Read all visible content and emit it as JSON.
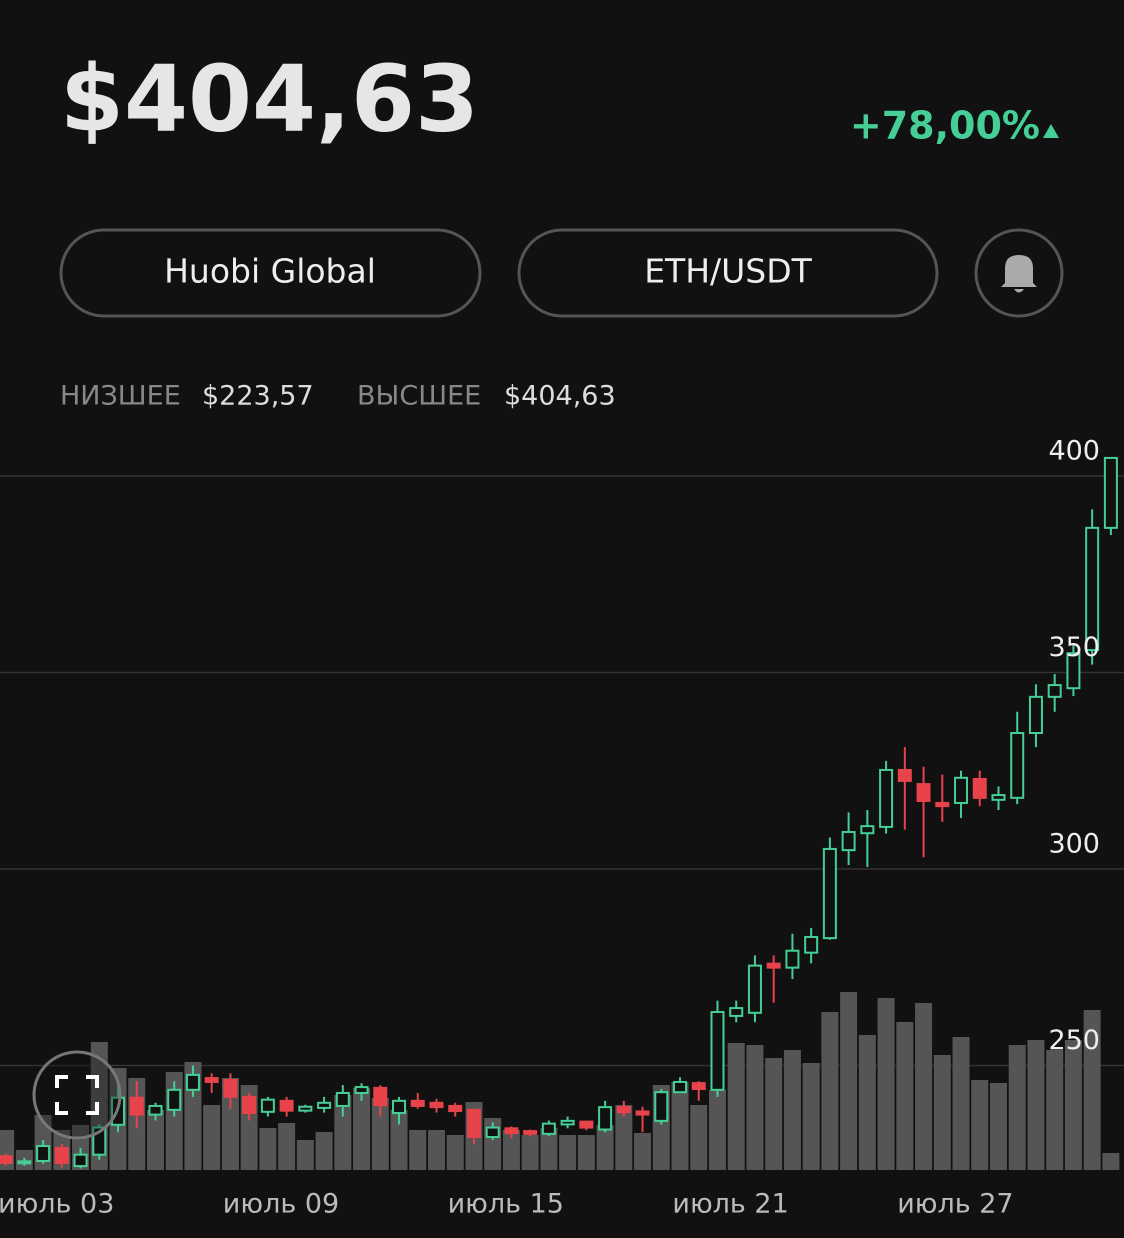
{
  "header": {
    "price": "$404,63",
    "change": "+78,00%"
  },
  "buttons": {
    "exchange": "Huobi Global",
    "pair": "ETH/USDT"
  },
  "range": {
    "low_label": "НИЗШЕЕ",
    "low": "$223,57",
    "high_label": "ВЫСШЕЕ",
    "high": "$404,63"
  },
  "chart_data": {
    "type": "candlestick",
    "x": [
      1.65,
      2.15,
      2.65,
      3.15,
      3.65,
      4.15,
      4.65,
      5.15,
      5.65,
      6.15,
      6.65,
      7.15,
      7.65,
      8.15,
      8.65,
      9.15,
      9.65,
      10.15,
      10.65,
      11.15,
      11.65,
      12.15,
      12.65,
      13.15,
      13.65,
      14.15,
      14.65,
      15.15,
      15.65,
      16.15,
      16.65,
      17.15,
      17.65,
      18.15,
      18.65,
      19.15,
      19.65,
      20.15,
      20.65,
      21.15,
      21.65,
      22.15,
      22.65,
      23.15,
      23.65,
      24.15,
      24.65,
      25.15,
      25.65,
      26.15,
      26.65,
      27.15,
      27.65,
      28.15,
      28.65,
      29.15,
      29.65,
      30.15,
      30.65,
      31.15
    ],
    "open": [
      226.9,
      225.1,
      225.7,
      229,
      224.4,
      227.3,
      234.9,
      241.8,
      237.5,
      238.7,
      243.8,
      246.8,
      246.3,
      242,
      238.2,
      241,
      238.5,
      239.2,
      239.7,
      243,
      244.3,
      237.9,
      241,
      240.5,
      239.7,
      238.7,
      231.8,
      234,
      233.3,
      232.6,
      235,
      235.7,
      233.7,
      239.4,
      238.3,
      235.9,
      243.2,
      245.5,
      243.8,
      262.6,
      263.4,
      275.9,
      274.9,
      278.7,
      282.4,
      304.8,
      309.1,
      310.7,
      325.2,
      321.6,
      316.8,
      316.8,
      322.9,
      317.6,
      318.1,
      334.6,
      343.8,
      346,
      355.7,
      386.8
    ],
    "high": [
      227.5,
      226.5,
      231,
      230,
      229,
      235,
      245,
      246,
      240.5,
      246,
      250,
      248,
      248,
      243,
      242,
      242,
      240,
      242,
      245,
      245.5,
      245,
      242,
      243,
      241.5,
      240.5,
      239,
      235.5,
      234.5,
      233.7,
      236,
      237,
      236,
      241,
      241,
      239.5,
      244,
      247,
      246,
      266.5,
      266.5,
      278,
      278,
      283.5,
      285,
      308,
      314.4,
      315,
      327.5,
      331,
      326,
      324,
      325,
      325,
      321,
      340,
      347,
      349.6,
      357,
      391.5,
      404.6
    ],
    "low": [
      224.5,
      224.5,
      225,
      224,
      223.8,
      226,
      233,
      234,
      236,
      237,
      242,
      243,
      239,
      236,
      237,
      237,
      238,
      238,
      237,
      241,
      237,
      235,
      239,
      238,
      237,
      230,
      231,
      231.5,
      232,
      232,
      234,
      233.5,
      233,
      237,
      233,
      235,
      243,
      241,
      242,
      261,
      261,
      266,
      272,
      276,
      282,
      301,
      300.5,
      309,
      310,
      303,
      312,
      313,
      316,
      315,
      316.5,
      331,
      340,
      344,
      352,
      385
    ],
    "close": [
      225.2,
      225.6,
      229.5,
      225.2,
      227.3,
      234.2,
      241.8,
      237.5,
      239.7,
      243.8,
      247.6,
      245.8,
      242,
      237.9,
      241.3,
      238.5,
      239.5,
      240.5,
      243,
      244.5,
      239.9,
      241,
      239.7,
      239.4,
      238.4,
      231.8,
      234.2,
      232.8,
      232.6,
      235.2,
      235.9,
      234.2,
      239.4,
      238.1,
      237.5,
      243.2,
      245.8,
      244,
      263.6,
      264.6,
      275.4,
      274.9,
      279.2,
      282.7,
      305.1,
      309.4,
      310.9,
      325.2,
      322.4,
      317.3,
      316,
      323.2,
      318.1,
      318.8,
      334.6,
      343.8,
      346.8,
      354.9,
      386.8,
      404.6
    ],
    "volume": [
      40,
      20,
      55,
      40,
      45,
      128,
      102,
      92,
      60,
      98,
      108,
      65,
      92,
      85,
      42,
      47,
      30,
      38,
      75,
      82,
      72,
      60,
      40,
      40,
      35,
      68,
      52,
      40,
      35,
      42,
      35,
      35,
      45,
      65,
      37,
      85,
      88,
      65,
      80,
      127,
      125,
      112,
      120,
      107,
      158,
      178,
      135,
      172,
      148,
      167,
      115,
      133,
      90,
      87,
      125,
      130,
      120,
      130,
      160,
      17
    ],
    "xlim": [
      1.5,
      31.5
    ],
    "xticks": [
      {
        "value": 3,
        "label": "июль 03"
      },
      {
        "value": 9,
        "label": "июль 09"
      },
      {
        "value": 15,
        "label": "июль 15"
      },
      {
        "value": 21,
        "label": "июль 21"
      },
      {
        "value": 27,
        "label": "июль 27"
      }
    ],
    "ylim": [
      223.4,
      410
    ],
    "yticks": [
      250,
      300,
      350,
      400
    ],
    "volume_lim": [
      0,
      200
    ],
    "up_color": "#45cf96",
    "down_color": "#e8434a",
    "volume_color": "#555555",
    "grid": true
  }
}
